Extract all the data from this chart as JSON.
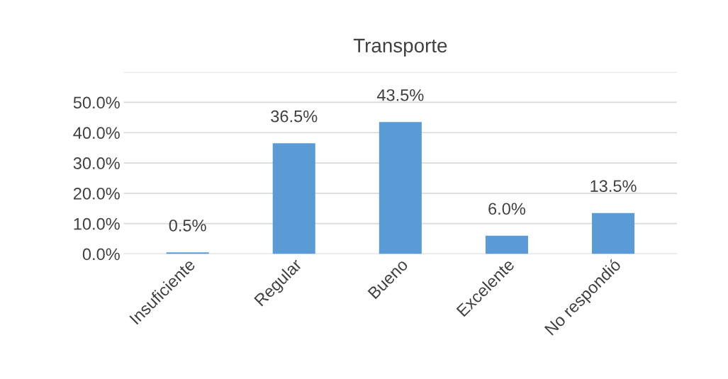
{
  "chart_data": {
    "type": "bar",
    "title": "Transporte",
    "categories": [
      "Insuficiente",
      "Regular",
      "Bueno",
      "Excelente",
      "No respondió"
    ],
    "values": [
      0.5,
      36.5,
      43.5,
      6.0,
      13.5
    ],
    "value_labels": [
      "0.5%",
      "36.5%",
      "43.5%",
      "6.0%",
      "13.5%"
    ],
    "color": "#5b9bd5",
    "ylim": [
      0,
      60
    ],
    "yticks": [
      {
        "value": 0,
        "label": "0.0%"
      },
      {
        "value": 10,
        "label": "10.0%"
      },
      {
        "value": 20,
        "label": "20.0%"
      },
      {
        "value": 30,
        "label": "30.0%"
      },
      {
        "value": 40,
        "label": "40.0%"
      },
      {
        "value": 50,
        "label": "50.0%"
      },
      {
        "value": 60,
        "label": null
      }
    ],
    "grid": "y",
    "legend": false
  }
}
